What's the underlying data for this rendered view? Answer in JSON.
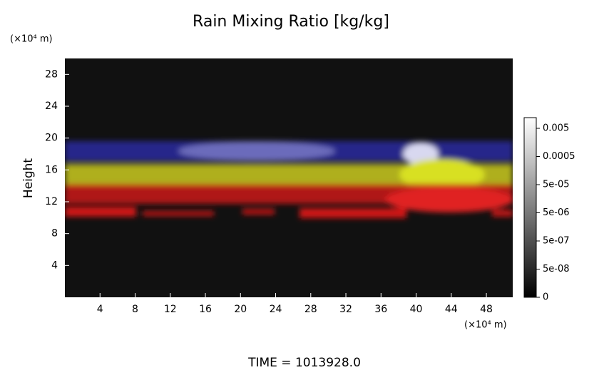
{
  "chart_data": {
    "type": "volume",
    "title": "Rain Mixing Ratio [kg/kg]",
    "y_label": "Height",
    "y_unit": "(×10⁴ m)",
    "x_unit": "(×10⁴ m)",
    "footer": "TIME = 1013928.0",
    "xlim": [
      0,
      51
    ],
    "xticks": [
      4,
      8,
      12,
      16,
      20,
      24,
      28,
      32,
      36,
      40,
      44,
      48
    ],
    "ylim": [
      0,
      30
    ],
    "yticks": [
      4,
      8,
      12,
      16,
      20,
      24,
      28
    ],
    "colorbar_ticks": [
      {
        "value": 0.005,
        "label": "0.005"
      },
      {
        "value": 0.0005,
        "label": "0.0005"
      },
      {
        "value": 5e-05,
        "label": "5e-05"
      },
      {
        "value": 5e-06,
        "label": "5e-06"
      },
      {
        "value": 5e-07,
        "label": "5e-07"
      },
      {
        "value": 5e-08,
        "label": "5e-08"
      },
      0
    ]
  }
}
